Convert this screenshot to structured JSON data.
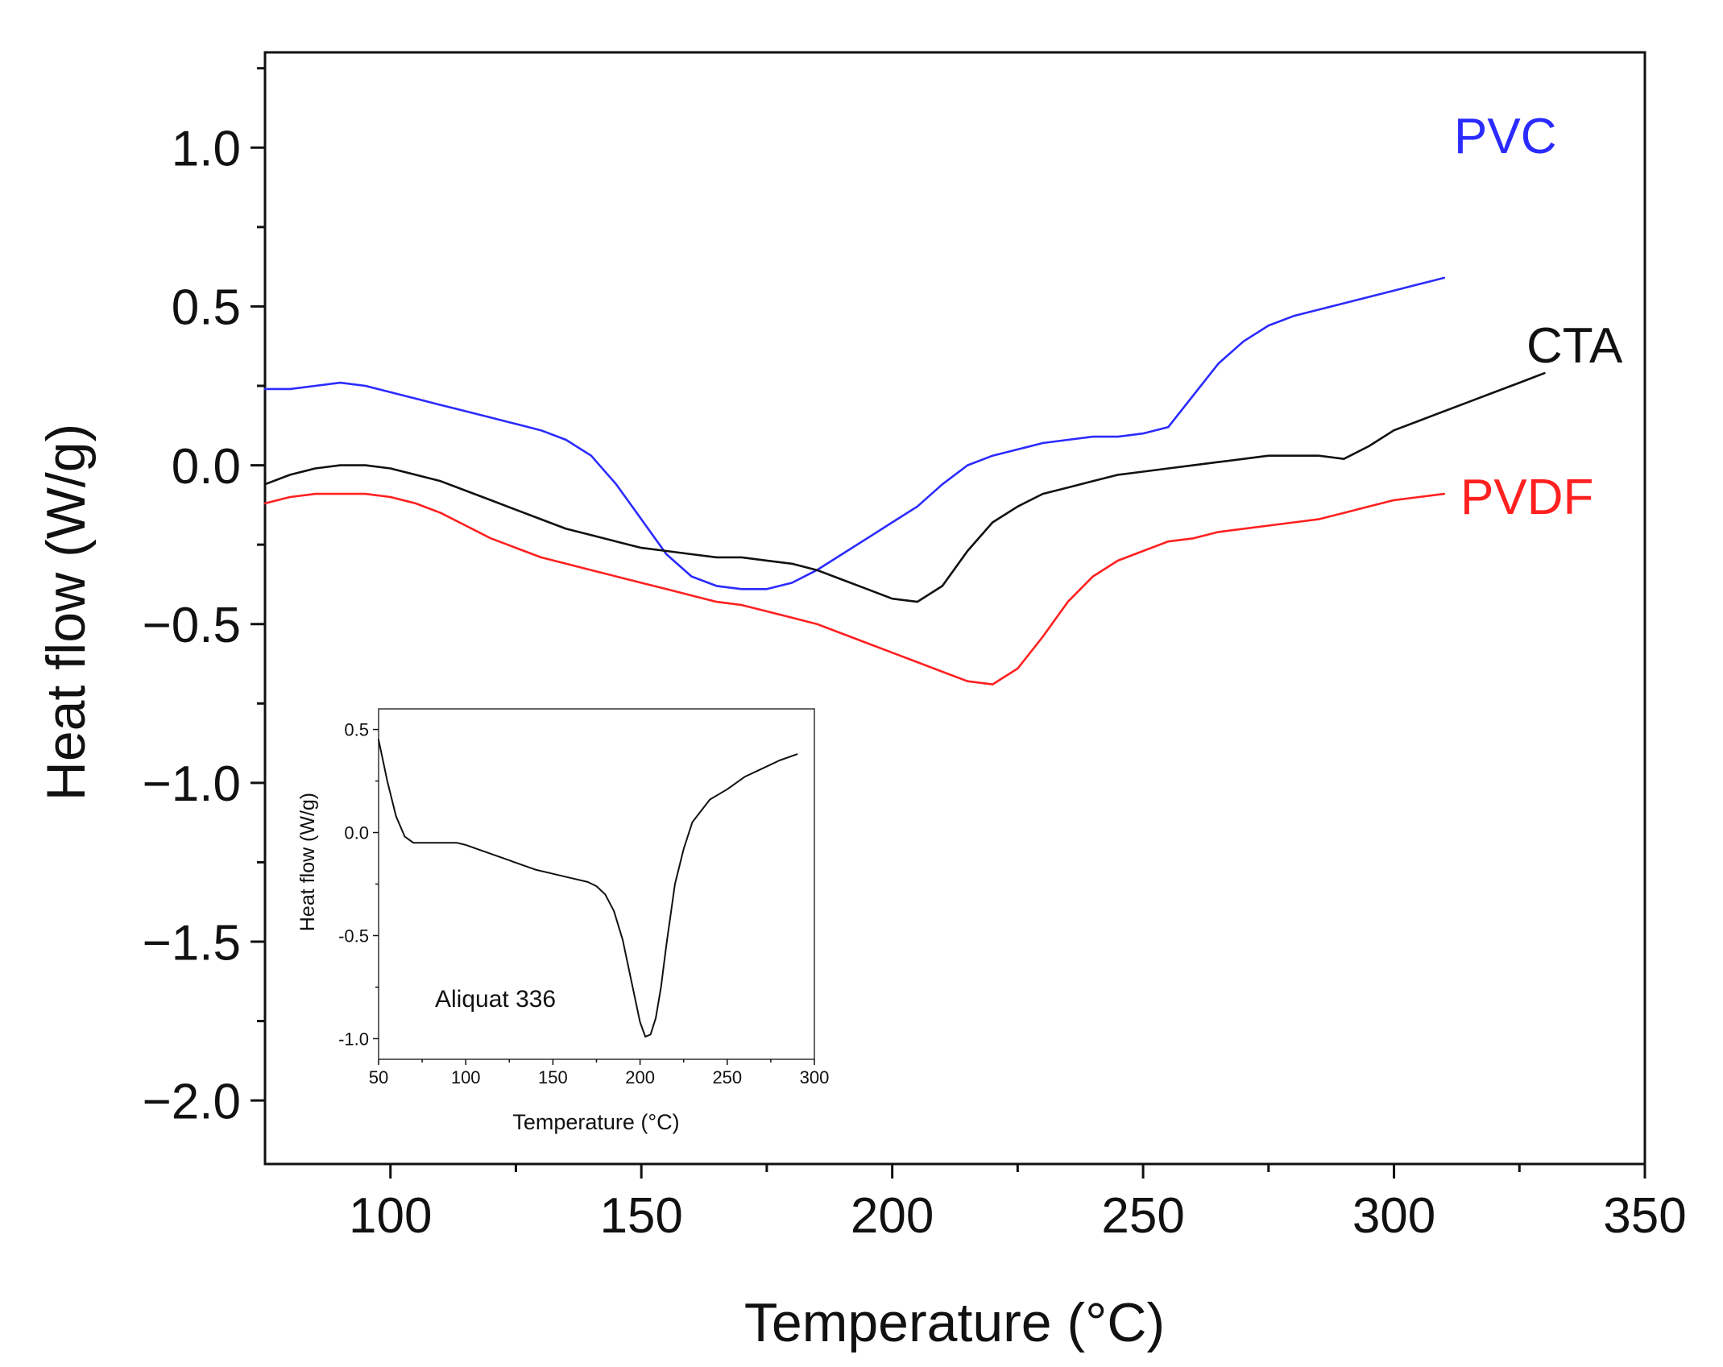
{
  "chart_data": [
    {
      "type": "line",
      "title": "",
      "xlabel": "Temperature (°C)",
      "ylabel": "Heat flow (W/g)",
      "xlim": [
        75,
        350
      ],
      "ylim": [
        -2.2,
        1.3
      ],
      "xticks": [
        100,
        150,
        200,
        250,
        300,
        350
      ],
      "xtick_labels": [
        "100",
        "150",
        "200",
        "250",
        "300",
        "350"
      ],
      "yticks": [
        1.0,
        0.5,
        0.0,
        -0.5,
        -1.0,
        -1.5,
        -2.0
      ],
      "ytick_labels": [
        "1.0",
        "0.5",
        "0.0",
        "−0.5",
        "−1.0",
        "−1.5",
        "−2.0"
      ],
      "grid": false,
      "series": [
        {
          "name": "PVC",
          "color": "#2b2bff",
          "x": [
            75,
            80,
            85,
            90,
            95,
            100,
            105,
            110,
            115,
            120,
            125,
            130,
            135,
            140,
            145,
            150,
            155,
            160,
            165,
            170,
            175,
            180,
            185,
            190,
            195,
            200,
            205,
            210,
            215,
            220,
            225,
            230,
            235,
            240,
            245,
            250,
            255,
            260,
            265,
            270,
            275,
            280,
            285,
            290,
            295,
            300,
            305,
            310
          ],
          "y": [
            0.24,
            0.24,
            0.25,
            0.26,
            0.25,
            0.23,
            0.21,
            0.19,
            0.17,
            0.15,
            0.13,
            0.11,
            0.08,
            0.03,
            -0.06,
            -0.17,
            -0.28,
            -0.35,
            -0.38,
            -0.39,
            -0.39,
            -0.37,
            -0.33,
            -0.28,
            -0.23,
            -0.18,
            -0.13,
            -0.06,
            0.0,
            0.03,
            0.05,
            0.07,
            0.08,
            0.09,
            0.09,
            0.1,
            0.12,
            0.22,
            0.32,
            0.39,
            0.44,
            0.47,
            0.49,
            0.51,
            0.53,
            0.55,
            0.57,
            0.59
          ]
        },
        {
          "name": "CTA",
          "color": "#111111",
          "x": [
            75,
            80,
            85,
            90,
            95,
            100,
            105,
            110,
            115,
            120,
            125,
            130,
            135,
            140,
            145,
            150,
            155,
            160,
            165,
            170,
            175,
            180,
            185,
            190,
            195,
            200,
            205,
            210,
            215,
            220,
            225,
            230,
            235,
            240,
            245,
            250,
            255,
            260,
            265,
            270,
            275,
            280,
            285,
            290,
            295,
            300,
            305,
            310,
            315,
            320,
            325,
            330
          ],
          "y": [
            -0.06,
            -0.03,
            -0.01,
            0.0,
            0.0,
            -0.01,
            -0.03,
            -0.05,
            -0.08,
            -0.11,
            -0.14,
            -0.17,
            -0.2,
            -0.22,
            -0.24,
            -0.26,
            -0.27,
            -0.28,
            -0.29,
            -0.29,
            -0.3,
            -0.31,
            -0.33,
            -0.36,
            -0.39,
            -0.42,
            -0.43,
            -0.38,
            -0.27,
            -0.18,
            -0.13,
            -0.09,
            -0.07,
            -0.05,
            -0.03,
            -0.02,
            -0.01,
            0.0,
            0.01,
            0.02,
            0.03,
            0.03,
            0.03,
            0.02,
            0.06,
            0.11,
            0.14,
            0.17,
            0.2,
            0.23,
            0.26,
            0.29
          ]
        },
        {
          "name": "PVDF",
          "color": "#ff2020",
          "x": [
            75,
            80,
            85,
            90,
            95,
            100,
            105,
            110,
            115,
            120,
            125,
            130,
            135,
            140,
            145,
            150,
            155,
            160,
            165,
            170,
            175,
            180,
            185,
            190,
            195,
            200,
            205,
            210,
            215,
            220,
            225,
            230,
            235,
            240,
            245,
            250,
            255,
            260,
            265,
            270,
            275,
            280,
            285,
            290,
            295,
            300,
            305,
            310
          ],
          "y": [
            -0.12,
            -0.1,
            -0.09,
            -0.09,
            -0.09,
            -0.1,
            -0.12,
            -0.15,
            -0.19,
            -0.23,
            -0.26,
            -0.29,
            -0.31,
            -0.33,
            -0.35,
            -0.37,
            -0.39,
            -0.41,
            -0.43,
            -0.44,
            -0.46,
            -0.48,
            -0.5,
            -0.53,
            -0.56,
            -0.59,
            -0.62,
            -0.65,
            -0.68,
            -0.69,
            -0.64,
            -0.54,
            -0.43,
            -0.35,
            -0.3,
            -0.27,
            -0.24,
            -0.23,
            -0.21,
            -0.2,
            -0.19,
            -0.18,
            -0.17,
            -0.15,
            -0.13,
            -0.11,
            -0.1,
            -0.09
          ]
        }
      ],
      "series_labels": [
        "PVC",
        "CTA",
        "PVDF"
      ]
    },
    {
      "type": "line",
      "title": "",
      "xlabel": "Temperature (°C)",
      "ylabel": "Heat flow (W/g)",
      "xlim": [
        50,
        300
      ],
      "ylim": [
        -1.1,
        0.6
      ],
      "xticks": [
        50,
        100,
        150,
        200,
        250,
        300
      ],
      "xtick_labels": [
        "50",
        "100",
        "150",
        "200",
        "250",
        "300"
      ],
      "yticks": [
        0.5,
        0.0,
        -0.5,
        -1.0
      ],
      "ytick_labels": [
        "0.5",
        "0.0",
        "-0.5",
        "-1.0"
      ],
      "grid": false,
      "annotation": "Aliquat 336",
      "series": [
        {
          "name": "Aliquat 336",
          "color": "#111111",
          "x": [
            50,
            55,
            60,
            65,
            70,
            75,
            80,
            85,
            90,
            95,
            100,
            110,
            120,
            130,
            140,
            150,
            160,
            170,
            175,
            180,
            185,
            190,
            195,
            200,
            203,
            206,
            209,
            212,
            215,
            220,
            225,
            230,
            240,
            250,
            260,
            270,
            280,
            290
          ],
          "y": [
            0.45,
            0.25,
            0.08,
            -0.02,
            -0.05,
            -0.05,
            -0.05,
            -0.05,
            -0.05,
            -0.05,
            -0.06,
            -0.09,
            -0.12,
            -0.15,
            -0.18,
            -0.2,
            -0.22,
            -0.24,
            -0.26,
            -0.3,
            -0.38,
            -0.52,
            -0.72,
            -0.92,
            -0.99,
            -0.98,
            -0.9,
            -0.75,
            -0.55,
            -0.25,
            -0.08,
            0.05,
            0.16,
            0.21,
            0.27,
            0.31,
            0.35,
            0.38
          ]
        }
      ]
    }
  ]
}
